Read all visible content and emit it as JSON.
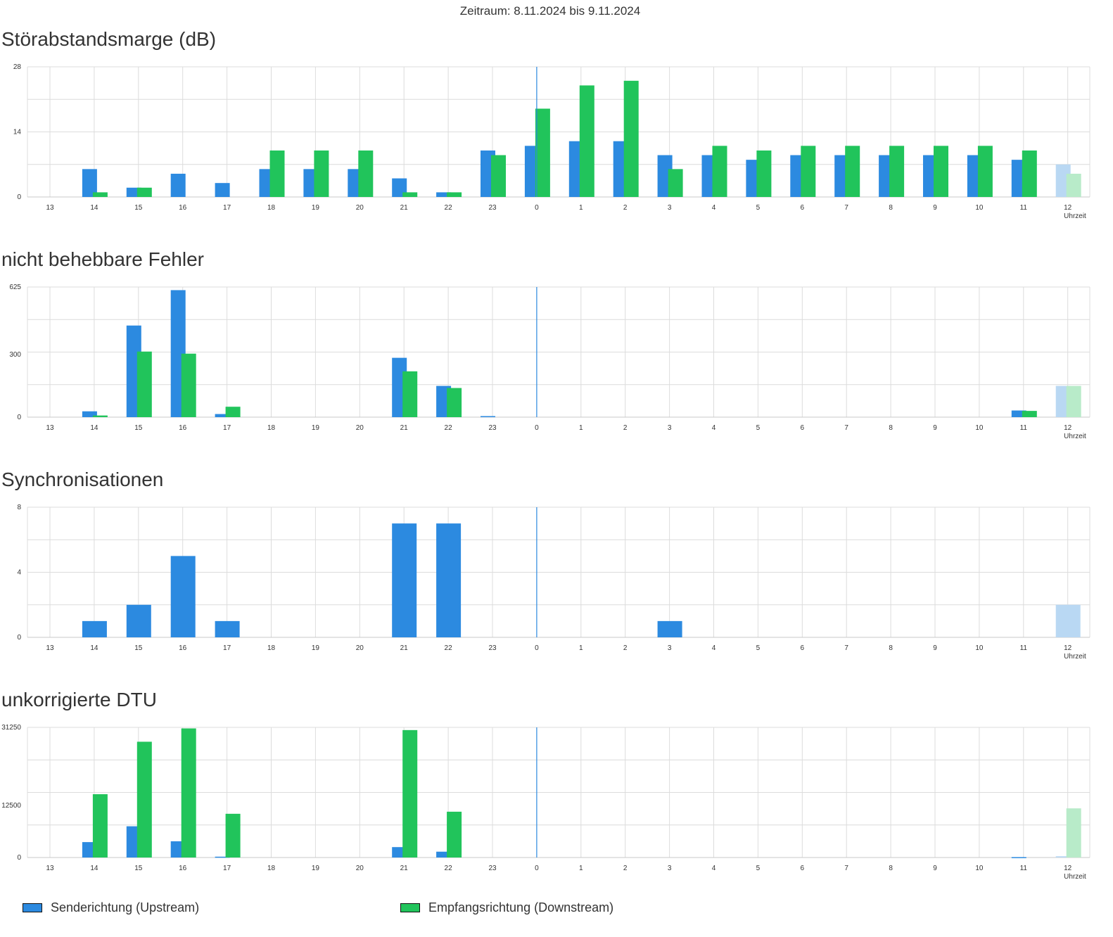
{
  "header": {
    "period": "Zeitraum: 8.11.2024 bis 9.11.2024"
  },
  "legend": {
    "upstream": "Senderichtung (Upstream)",
    "downstream": "Empfangsrichtung (Downstream)"
  },
  "colors": {
    "upstream": "#2c8ae0",
    "downstream": "#21c45b",
    "upstream_light": "#b9d8f3",
    "downstream_light": "#b8ebc9",
    "now_line": "#2c8ae0",
    "grid": "#dcdcdc"
  },
  "chart_data": [
    {
      "type": "bar",
      "title": "Störabstandsmarge (dB)",
      "xlabel": "Uhrzeit",
      "categories": [
        "13",
        "14",
        "15",
        "16",
        "17",
        "18",
        "19",
        "20",
        "21",
        "22",
        "23",
        "0",
        "1",
        "2",
        "3",
        "4",
        "5",
        "6",
        "7",
        "8",
        "9",
        "10",
        "11",
        "12"
      ],
      "yticks": [
        "0",
        "14",
        "28"
      ],
      "ylim": [
        0,
        28
      ],
      "now_category": "0",
      "partial_category": "12",
      "series": [
        {
          "name": "Senderichtung (Upstream)",
          "values": [
            0,
            6,
            2,
            5,
            3,
            6,
            6,
            6,
            4,
            1,
            10,
            11,
            12,
            12,
            9,
            9,
            8,
            9,
            9,
            9,
            9,
            9,
            8,
            7
          ]
        },
        {
          "name": "Empfangsrichtung (Downstream)",
          "values": [
            0,
            1,
            2,
            0,
            0,
            10,
            10,
            10,
            1,
            1,
            9,
            19,
            24,
            25,
            6,
            11,
            10,
            11,
            11,
            11,
            11,
            11,
            10,
            5
          ]
        }
      ]
    },
    {
      "type": "bar",
      "title": "nicht behebbare Fehler",
      "xlabel": "Uhrzeit",
      "categories": [
        "13",
        "14",
        "15",
        "16",
        "17",
        "18",
        "19",
        "20",
        "21",
        "22",
        "23",
        "0",
        "1",
        "2",
        "3",
        "4",
        "5",
        "6",
        "7",
        "8",
        "9",
        "10",
        "11",
        "12"
      ],
      "yticks": [
        "0",
        "300",
        "625"
      ],
      "ylim": [
        0,
        625
      ],
      "now_category": "0",
      "partial_category": "12",
      "series": [
        {
          "name": "Senderichtung (Upstream)",
          "values": [
            0,
            28,
            440,
            610,
            15,
            0,
            0,
            0,
            285,
            150,
            5,
            0,
            0,
            0,
            0,
            0,
            0,
            0,
            0,
            0,
            0,
            0,
            32,
            150
          ]
        },
        {
          "name": "Empfangsrichtung (Downstream)",
          "values": [
            0,
            8,
            315,
            305,
            50,
            0,
            0,
            0,
            220,
            140,
            0,
            0,
            0,
            0,
            0,
            0,
            0,
            0,
            0,
            0,
            0,
            0,
            30,
            150
          ]
        }
      ]
    },
    {
      "type": "bar",
      "title": "Synchronisationen",
      "xlabel": "Uhrzeit",
      "categories": [
        "13",
        "14",
        "15",
        "16",
        "17",
        "18",
        "19",
        "20",
        "21",
        "22",
        "23",
        "0",
        "1",
        "2",
        "3",
        "4",
        "5",
        "6",
        "7",
        "8",
        "9",
        "10",
        "11",
        "12"
      ],
      "yticks": [
        "0",
        "4",
        "8"
      ],
      "ylim": [
        0,
        8
      ],
      "now_category": "0",
      "partial_category": "12",
      "series": [
        {
          "name": "Synchronisationen",
          "values": [
            0,
            1,
            2,
            5,
            1,
            0,
            0,
            0,
            7,
            7,
            0,
            0,
            0,
            0,
            1,
            0,
            0,
            0,
            0,
            0,
            0,
            0,
            0,
            2
          ]
        }
      ]
    },
    {
      "type": "bar",
      "title": "unkorrigierte DTU",
      "xlabel": "Uhrzeit",
      "categories": [
        "13",
        "14",
        "15",
        "16",
        "17",
        "18",
        "19",
        "20",
        "21",
        "22",
        "23",
        "0",
        "1",
        "2",
        "3",
        "4",
        "5",
        "6",
        "7",
        "8",
        "9",
        "10",
        "11",
        "12"
      ],
      "yticks": [
        "0",
        "12500",
        "31250"
      ],
      "ylim": [
        0,
        31250
      ],
      "now_category": "0",
      "partial_category": "12",
      "series": [
        {
          "name": "Senderichtung (Upstream)",
          "values": [
            0,
            3700,
            7500,
            3900,
            200,
            0,
            0,
            0,
            2500,
            1400,
            0,
            0,
            0,
            0,
            0,
            0,
            0,
            0,
            0,
            0,
            0,
            0,
            100,
            300
          ]
        },
        {
          "name": "Empfangsrichtung (Downstream)",
          "values": [
            0,
            15200,
            27800,
            31000,
            10500,
            0,
            0,
            0,
            30600,
            11000,
            0,
            0,
            0,
            0,
            0,
            0,
            0,
            0,
            0,
            0,
            0,
            0,
            0,
            11800
          ]
        }
      ]
    }
  ]
}
